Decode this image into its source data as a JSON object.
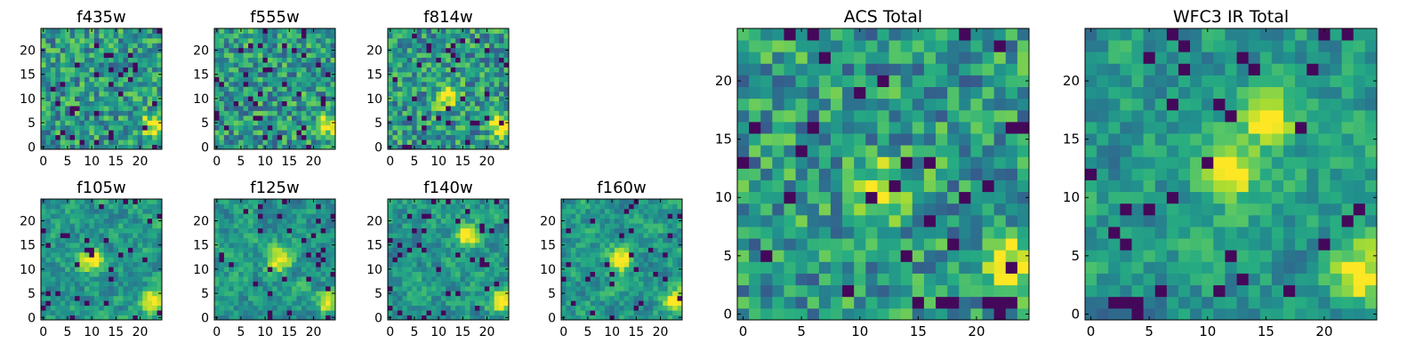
{
  "figure": {
    "colormap": "viridis",
    "background": "#ffffff",
    "panels": [
      {
        "title": "f435w",
        "xticks": [
          0,
          5,
          10,
          15,
          20
        ],
        "yticks": [
          0,
          5,
          10,
          15,
          20
        ],
        "bright_spots": [
          [
            23,
            4.5
          ]
        ],
        "seed": 11
      },
      {
        "title": "f555w",
        "xticks": [
          0,
          5,
          10,
          15,
          20
        ],
        "yticks": [
          0,
          5,
          10,
          15,
          20
        ],
        "bright_spots": [
          [
            23,
            4.5
          ]
        ],
        "seed": 23
      },
      {
        "title": "f814w",
        "xticks": [
          0,
          5,
          10,
          15,
          20
        ],
        "yticks": [
          0,
          5,
          10,
          15,
          20
        ],
        "bright_spots": [
          [
            23,
            4.5
          ],
          [
            12,
            10.5
          ]
        ],
        "seed": 37
      },
      {
        "title": "f105w",
        "xticks": [
          0,
          5,
          10,
          15,
          20
        ],
        "yticks": [
          0,
          5,
          10,
          15,
          20
        ],
        "bright_spots": [
          [
            23,
            3.5
          ],
          [
            10,
            12
          ]
        ],
        "seed": 41
      },
      {
        "title": "f125w",
        "xticks": [
          0,
          5,
          10,
          15,
          20
        ],
        "yticks": [
          0,
          5,
          10,
          15,
          20
        ],
        "bright_spots": [
          [
            23,
            3.5
          ],
          [
            13,
            12
          ]
        ],
        "seed": 53
      },
      {
        "title": "f140w",
        "xticks": [
          0,
          5,
          10,
          15,
          20
        ],
        "yticks": [
          0,
          5,
          10,
          15,
          20
        ],
        "bright_spots": [
          [
            23,
            3.5
          ],
          [
            16,
            17
          ]
        ],
        "seed": 67
      },
      {
        "title": "f160w",
        "xticks": [
          0,
          5,
          10,
          15,
          20
        ],
        "yticks": [
          0,
          5,
          10,
          15,
          20
        ],
        "bright_spots": [
          [
            23,
            3.5
          ],
          [
            12,
            12
          ]
        ],
        "seed": 71
      },
      {
        "title": "ACS Total",
        "xticks": [
          0,
          5,
          10,
          15,
          20
        ],
        "yticks": [
          0,
          5,
          10,
          15,
          20
        ],
        "bright_spots": [
          [
            23,
            4.5
          ],
          [
            12,
            10.5
          ]
        ],
        "seed": 83
      },
      {
        "title": "WFC3 IR Total",
        "xticks": [
          0,
          5,
          10,
          15,
          20
        ],
        "yticks": [
          0,
          5,
          10,
          15,
          20
        ],
        "bright_spots": [
          [
            23,
            3.5
          ],
          [
            15,
            17
          ],
          [
            12,
            12
          ]
        ],
        "seed": 97
      }
    ]
  },
  "chart_data": {
    "type": "heatmap",
    "grid_size": [
      25,
      25
    ],
    "xlim": [
      -0.5,
      24.5
    ],
    "ylim": [
      -0.5,
      24.5
    ],
    "origin": "lower",
    "colormap": "viridis",
    "panels": [
      "f435w",
      "f555w",
      "f814w",
      "f105w",
      "f125w",
      "f140w",
      "f160w",
      "ACS Total",
      "WFC3 IR Total"
    ]
  }
}
